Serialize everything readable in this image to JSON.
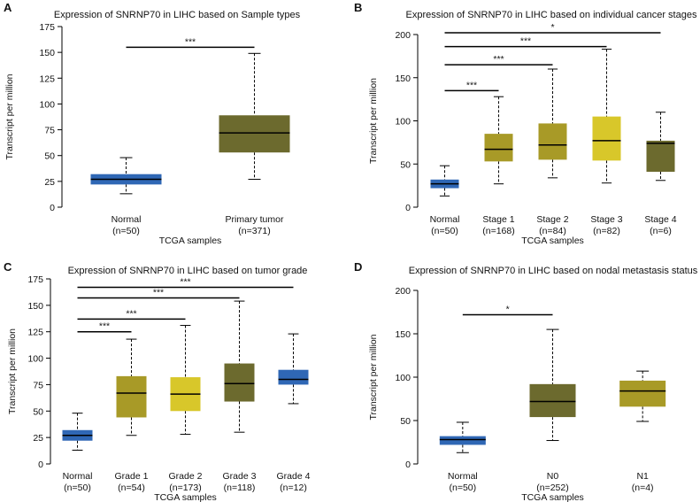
{
  "figure": {
    "colors": {
      "normal": "#2f67b5",
      "olive_light": "#a89a27",
      "olive_dark": "#6c6a2e",
      "yellow": "#d8c72a",
      "axis": "#000000"
    }
  },
  "chart_data": [
    {
      "type": "box",
      "panel": "A",
      "title": "Expression of SNRNP70 in LIHC based on Sample types",
      "xlabel": "TCGA samples",
      "ylabel": "Transcript per million",
      "ylim": [
        0,
        175
      ],
      "yticks": [
        "0",
        "25",
        "50",
        "75",
        "100",
        "125",
        "150",
        "175"
      ],
      "groups": [
        {
          "name": "Normal",
          "n": "(n=50)",
          "min": 13,
          "q1": 22,
          "median": 27,
          "q3": 32,
          "max": 48,
          "color": "#2f67b5"
        },
        {
          "name": "Primary tumor",
          "n": "(n=371)",
          "min": 27,
          "q1": 53,
          "median": 72,
          "q3": 89,
          "max": 149,
          "color": "#6c6a2e"
        }
      ],
      "significance": [
        {
          "label": "***",
          "from": 0,
          "to": 1,
          "y": 155
        }
      ]
    },
    {
      "type": "box",
      "panel": "B",
      "title": "Expression of SNRNP70 in LIHC based on individual cancer stages",
      "xlabel": "TCGA samples",
      "ylabel": "Transcript per million",
      "ylim": [
        0,
        200
      ],
      "yticks": [
        "0",
        "50",
        "100",
        "150",
        "200"
      ],
      "groups": [
        {
          "name": "Normal",
          "n": "(n=50)",
          "min": 13,
          "q1": 22,
          "median": 27,
          "q3": 32,
          "max": 48,
          "color": "#2f67b5"
        },
        {
          "name": "Stage 1",
          "n": "(n=168)",
          "min": 27,
          "q1": 53,
          "median": 67,
          "q3": 85,
          "max": 128,
          "color": "#a89a27"
        },
        {
          "name": "Stage 2",
          "n": "(n=84)",
          "min": 34,
          "q1": 55,
          "median": 72,
          "q3": 97,
          "max": 160,
          "color": "#a89a27"
        },
        {
          "name": "Stage 3",
          "n": "(n=82)",
          "min": 28,
          "q1": 54,
          "median": 77,
          "q3": 105,
          "max": 183,
          "color": "#d8c72a"
        },
        {
          "name": "Stage 4",
          "n": "(n=6)",
          "min": 31,
          "q1": 41,
          "median": 74,
          "q3": 77,
          "max": 110,
          "color": "#6c6a2e"
        }
      ],
      "significance": [
        {
          "label": "***",
          "from": 0,
          "to": 1,
          "y": 135
        },
        {
          "label": "***",
          "from": 0,
          "to": 2,
          "y": 165
        },
        {
          "label": "***",
          "from": 0,
          "to": 3,
          "y": 186
        },
        {
          "label": "*",
          "from": 0,
          "to": 4,
          "y": 202
        }
      ]
    },
    {
      "type": "box",
      "panel": "C",
      "title": "Expression of SNRNP70 in LIHC based on tumor grade",
      "xlabel": "TCGA samples",
      "ylabel": "Transcript per million",
      "ylim": [
        0,
        175
      ],
      "yticks": [
        "0",
        "25",
        "50",
        "75",
        "100",
        "125",
        "150",
        "175"
      ],
      "groups": [
        {
          "name": "Normal",
          "n": "(n=50)",
          "min": 13,
          "q1": 22,
          "median": 27,
          "q3": 32,
          "max": 48,
          "color": "#2f67b5"
        },
        {
          "name": "Grade 1",
          "n": "(n=54)",
          "min": 27,
          "q1": 44,
          "median": 67,
          "q3": 83,
          "max": 118,
          "color": "#a89a27"
        },
        {
          "name": "Grade 2",
          "n": "(n=173)",
          "min": 28,
          "q1": 50,
          "median": 66,
          "q3": 82,
          "max": 131,
          "color": "#d8c72a"
        },
        {
          "name": "Grade 3",
          "n": "(n=118)",
          "min": 30,
          "q1": 59,
          "median": 76,
          "q3": 95,
          "max": 154,
          "color": "#6c6a2e"
        },
        {
          "name": "Grade 4",
          "n": "(n=12)",
          "min": 57,
          "q1": 75,
          "median": 80,
          "q3": 89,
          "max": 123,
          "color": "#2f67b5"
        }
      ],
      "significance": [
        {
          "label": "***",
          "from": 0,
          "to": 1,
          "y": 125
        },
        {
          "label": "***",
          "from": 0,
          "to": 2,
          "y": 137
        },
        {
          "label": "***",
          "from": 0,
          "to": 3,
          "y": 157
        },
        {
          "label": "***",
          "from": 0,
          "to": 4,
          "y": 167
        }
      ]
    },
    {
      "type": "box",
      "panel": "D",
      "title": "Expression of SNRNP70 in LIHC based on nodal metastasis status",
      "xlabel": "TCGA samples",
      "ylabel": "Transcript per million",
      "ylim": [
        0,
        200
      ],
      "yticks": [
        "0",
        "50",
        "100",
        "150",
        "200"
      ],
      "groups": [
        {
          "name": "Normal",
          "n": "(n=50)",
          "min": 13,
          "q1": 22,
          "median": 28,
          "q3": 32,
          "max": 48,
          "color": "#2f67b5"
        },
        {
          "name": "N0",
          "n": "(n=252)",
          "min": 27,
          "q1": 54,
          "median": 72,
          "q3": 92,
          "max": 155,
          "color": "#6c6a2e"
        },
        {
          "name": "N1",
          "n": "(n=4)",
          "min": 49,
          "q1": 66,
          "median": 84,
          "q3": 96,
          "max": 107,
          "color": "#a89a27"
        }
      ],
      "significance": [
        {
          "label": "*",
          "from": 0,
          "to": 1,
          "y": 172
        }
      ]
    }
  ]
}
